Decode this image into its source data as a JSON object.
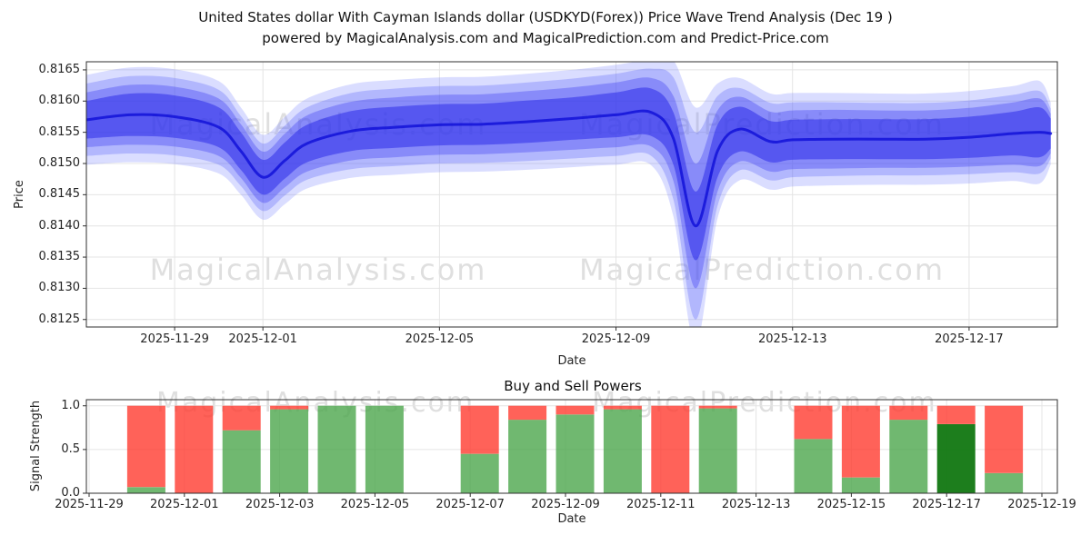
{
  "title": {
    "line1": "United States dollar With Cayman Islands dollar (USDKYD(Forex)) Price Wave Trend Analysis (Dec 19 )",
    "line2": "powered by MagicalAnalysis.com and MagicalPrediction.com and Predict-Price.com"
  },
  "watermarks": {
    "left": "MagicalAnalysis.com",
    "right": "MagicalPrediction.com"
  },
  "chart_data": [
    {
      "type": "area",
      "title": "Price Wave Trend",
      "xlabel": "Date",
      "ylabel": "Price",
      "x_epoch": "2025-11-27",
      "x_domain_days": [
        0,
        22
      ],
      "ylim": [
        0.81238,
        0.81663
      ],
      "yticks": [
        0.8125,
        0.813,
        0.8135,
        0.814,
        0.8145,
        0.815,
        0.8155,
        0.816,
        0.8165
      ],
      "xticks": {
        "days": [
          2,
          4,
          8,
          12,
          16,
          20
        ],
        "labels": [
          "2025-11-29",
          "2025-12-01",
          "2025-12-05",
          "2025-12-09",
          "2025-12-13",
          "2025-12-17"
        ]
      },
      "grid": true,
      "x_days": [
        0,
        1,
        2,
        3,
        3.5,
        4,
        4.5,
        5,
        6,
        7,
        8,
        9,
        10,
        11,
        12,
        12.8,
        13.3,
        13.8,
        14.3,
        14.8,
        15.5,
        16,
        17,
        18,
        19,
        20,
        21,
        21.6,
        21.85
      ],
      "mid": [
        0.8157,
        0.81578,
        0.81575,
        0.81558,
        0.8152,
        0.81478,
        0.81505,
        0.81532,
        0.81552,
        0.81558,
        0.81562,
        0.81563,
        0.81567,
        0.81572,
        0.81578,
        0.81582,
        0.8154,
        0.814,
        0.8152,
        0.81555,
        0.81535,
        0.81538,
        0.81539,
        0.81539,
        0.81539,
        0.81542,
        0.81548,
        0.8155,
        0.81548
      ],
      "bands": [
        {
          "name": "outer-halo",
          "color": "#7b86ff",
          "opacity": 0.28,
          "halfwidth": [
            0.00072,
            0.00076,
            0.00076,
            0.00074,
            0.0007,
            0.00068,
            0.0007,
            0.00072,
            0.00075,
            0.00076,
            0.00076,
            0.00076,
            0.00077,
            0.00078,
            0.0008,
            0.00085,
            0.00125,
            0.0019,
            0.00108,
            0.00082,
            0.00077,
            0.00075,
            0.00074,
            0.00073,
            0.00073,
            0.00074,
            0.00076,
            0.00082,
            0.0005
          ]
        },
        {
          "name": "light-band",
          "color": "#5560f7",
          "opacity": 0.3,
          "halfwidth": [
            0.00058,
            0.00062,
            0.00062,
            0.0006,
            0.00056,
            0.00054,
            0.00056,
            0.00058,
            0.00061,
            0.00062,
            0.00062,
            0.00062,
            0.00063,
            0.00064,
            0.00066,
            0.0007,
            0.00098,
            0.0015,
            0.00088,
            0.00066,
            0.00062,
            0.0006,
            0.00059,
            0.00058,
            0.00058,
            0.00059,
            0.00062,
            0.00066,
            0.0004
          ]
        },
        {
          "name": "mid-band",
          "color": "#3a3af0",
          "opacity": 0.35,
          "halfwidth": [
            0.00044,
            0.00048,
            0.00048,
            0.00046,
            0.00043,
            0.00041,
            0.00043,
            0.00045,
            0.00047,
            0.00048,
            0.00048,
            0.00048,
            0.00049,
            0.0005,
            0.00052,
            0.00055,
            0.00068,
            0.001,
            0.00065,
            0.00052,
            0.00048,
            0.00047,
            0.00047,
            0.00046,
            0.00046,
            0.00047,
            0.0005,
            0.00054,
            0.00032
          ]
        },
        {
          "name": "core-band",
          "color": "#2424e8",
          "opacity": 0.5,
          "halfwidth": [
            0.0003,
            0.00034,
            0.00034,
            0.00032,
            0.0003,
            0.00028,
            0.00029,
            0.0003,
            0.00032,
            0.00033,
            0.00033,
            0.00033,
            0.00034,
            0.00034,
            0.00036,
            0.00038,
            0.00042,
            0.00055,
            0.00042,
            0.00036,
            0.00033,
            0.00032,
            0.00032,
            0.00032,
            0.00032,
            0.00033,
            0.00035,
            0.0004,
            0.00024
          ]
        }
      ],
      "core": {
        "color": "#1212d8",
        "opacity": 0.85,
        "width": 3
      }
    },
    {
      "type": "bar",
      "title": "Buy and Sell Powers",
      "xlabel": "Date",
      "ylabel": "Signal Strength",
      "x_epoch": "2025-11-29",
      "ylim": [
        0,
        1.07
      ],
      "yticks": [
        0.0,
        0.5,
        1.0
      ],
      "xticks": [
        "2025-11-29",
        "2025-12-01",
        "2025-12-03",
        "2025-12-05",
        "2025-12-07",
        "2025-12-09",
        "2025-12-11",
        "2025-12-13",
        "2025-12-15",
        "2025-12-17",
        "2025-12-19"
      ],
      "grid": true,
      "colors": {
        "buy": "#4ca64c",
        "buy_dark": "#117711",
        "sell": "#ff3b30"
      },
      "bars": [
        {
          "date": "2025-11-30",
          "buy": 0.07,
          "sell": 0.93
        },
        {
          "date": "2025-12-01",
          "buy": 0.0,
          "sell": 1.0
        },
        {
          "date": "2025-12-02",
          "buy": 0.72,
          "sell": 0.28
        },
        {
          "date": "2025-12-03",
          "buy": 0.96,
          "sell": 0.04
        },
        {
          "date": "2025-12-04",
          "buy": 1.0,
          "sell": 0.0
        },
        {
          "date": "2025-12-05",
          "buy": 1.0,
          "sell": 0.0
        },
        {
          "date": "2025-12-07",
          "buy": 0.45,
          "sell": 0.55
        },
        {
          "date": "2025-12-08",
          "buy": 0.84,
          "sell": 0.16
        },
        {
          "date": "2025-12-09",
          "buy": 0.9,
          "sell": 0.1
        },
        {
          "date": "2025-12-10",
          "buy": 0.96,
          "sell": 0.04
        },
        {
          "date": "2025-12-11",
          "buy": 0.0,
          "sell": 1.0
        },
        {
          "date": "2025-12-12",
          "buy": 0.97,
          "sell": 0.03
        },
        {
          "date": "2025-12-14",
          "buy": 0.62,
          "sell": 0.38
        },
        {
          "date": "2025-12-15",
          "buy": 0.18,
          "sell": 0.82
        },
        {
          "date": "2025-12-16",
          "buy": 0.84,
          "sell": 0.16
        },
        {
          "date": "2025-12-17",
          "buy": 0.79,
          "sell": 0.21,
          "dark": true
        },
        {
          "date": "2025-12-18",
          "buy": 0.23,
          "sell": 0.77
        }
      ]
    }
  ]
}
